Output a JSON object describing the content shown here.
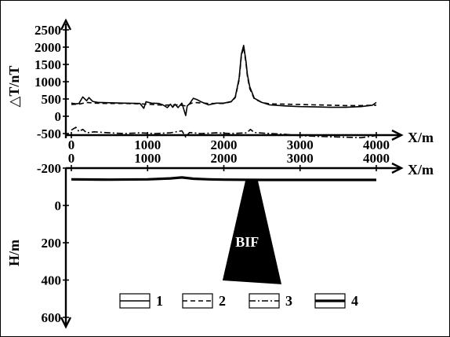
{
  "chart_data": [
    {
      "type": "line",
      "title": "",
      "ylabel": "△T/nT",
      "xlabel": "X/m",
      "xlim": [
        0,
        4200
      ],
      "ylim": [
        -500,
        2500
      ],
      "x_ticks": [
        "0",
        "1000",
        "2000",
        "3000",
        "4000"
      ],
      "y_ticks": [
        "2500",
        "2000",
        "1500",
        "1000",
        "500",
        "0",
        "-500"
      ],
      "series": [
        {
          "name": "1",
          "style": "solid",
          "x": [
            0,
            60,
            100,
            150,
            200,
            230,
            280,
            350,
            500,
            700,
            900,
            950,
            980,
            1050,
            1150,
            1200,
            1260,
            1300,
            1330,
            1360,
            1400,
            1450,
            1500,
            1520,
            1550,
            1600,
            1650,
            1700,
            1800,
            1900,
            2000,
            2100,
            2150,
            2200,
            2230,
            2260,
            2290,
            2310,
            2340,
            2400,
            2500,
            2600,
            2800,
            3000,
            3200,
            3400,
            3600,
            3800,
            3950,
            4000
          ],
          "y": [
            380,
            360,
            370,
            560,
            450,
            540,
            430,
            400,
            390,
            380,
            370,
            230,
            420,
            380,
            370,
            330,
            250,
            350,
            260,
            350,
            250,
            380,
            20,
            300,
            360,
            520,
            480,
            420,
            330,
            380,
            380,
            430,
            560,
            1100,
            1800,
            2050,
            1600,
            1200,
            850,
            520,
            400,
            330,
            300,
            280,
            270,
            260,
            260,
            280,
            320,
            400
          ]
        },
        {
          "name": "2",
          "style": "dashed",
          "x": [
            0,
            100,
            200,
            300,
            500,
            700,
            900,
            1000,
            1200,
            1400,
            1500,
            1600,
            1800,
            2000,
            2100,
            2150,
            2200,
            2230,
            2260,
            2290,
            2310,
            2340,
            2400,
            2500,
            2600,
            2800,
            3000,
            3200,
            3400,
            3600,
            3800,
            4000
          ],
          "y": [
            340,
            350,
            400,
            380,
            370,
            370,
            360,
            350,
            320,
            330,
            300,
            400,
            370,
            370,
            420,
            540,
            1050,
            1750,
            2000,
            1550,
            1150,
            800,
            500,
            400,
            360,
            350,
            340,
            330,
            320,
            310,
            310,
            320
          ]
        },
        {
          "name": "3",
          "style": "dashdot",
          "x": [
            0,
            60,
            100,
            150,
            200,
            300,
            500,
            700,
            900,
            1100,
            1300,
            1450,
            1500,
            1550,
            1700,
            1900,
            2100,
            2300,
            2350,
            2400,
            2600,
            2800,
            3000,
            3200,
            3500,
            3800,
            4000
          ],
          "y": [
            -400,
            -320,
            -440,
            -380,
            -480,
            -450,
            -480,
            -500,
            -480,
            -500,
            -480,
            -420,
            -600,
            -470,
            -500,
            -480,
            -500,
            -480,
            -380,
            -470,
            -500,
            -520,
            -560,
            -580,
            -600,
            -620,
            -560
          ]
        }
      ]
    },
    {
      "type": "line",
      "title": "",
      "ylabel": "H/m",
      "xlabel": "X/m",
      "xlim": [
        0,
        4200
      ],
      "ylim": [
        -200,
        600
      ],
      "inverted_y": true,
      "x_ticks": [
        "0",
        "1000",
        "2000",
        "3000",
        "4000"
      ],
      "y_ticks": [
        "-200",
        "0",
        "200",
        "400",
        "600"
      ],
      "series": [
        {
          "name": "4",
          "style": "thick-solid",
          "x": [
            0,
            500,
            1000,
            1300,
            1450,
            1600,
            1800,
            2000,
            2500,
            3000,
            3500,
            4000
          ],
          "y": [
            -140,
            -138,
            -140,
            -145,
            -150,
            -143,
            -140,
            -138,
            -137,
            -137,
            -137,
            -137
          ]
        }
      ],
      "body": {
        "label": "BIF",
        "polygon": [
          [
            2290,
            -135
          ],
          [
            2440,
            -135
          ],
          [
            2750,
            420
          ],
          [
            1990,
            400
          ]
        ]
      }
    }
  ],
  "legend": {
    "items": [
      {
        "label": "1",
        "style": "solid"
      },
      {
        "label": "2",
        "style": "dashed"
      },
      {
        "label": "3",
        "style": "dashdot"
      },
      {
        "label": "4",
        "style": "thick-solid"
      }
    ]
  },
  "colors": {
    "ink": "#000000",
    "background": "#ffffff",
    "bif_fill": "#000000",
    "bif_text": "#ffffff"
  }
}
